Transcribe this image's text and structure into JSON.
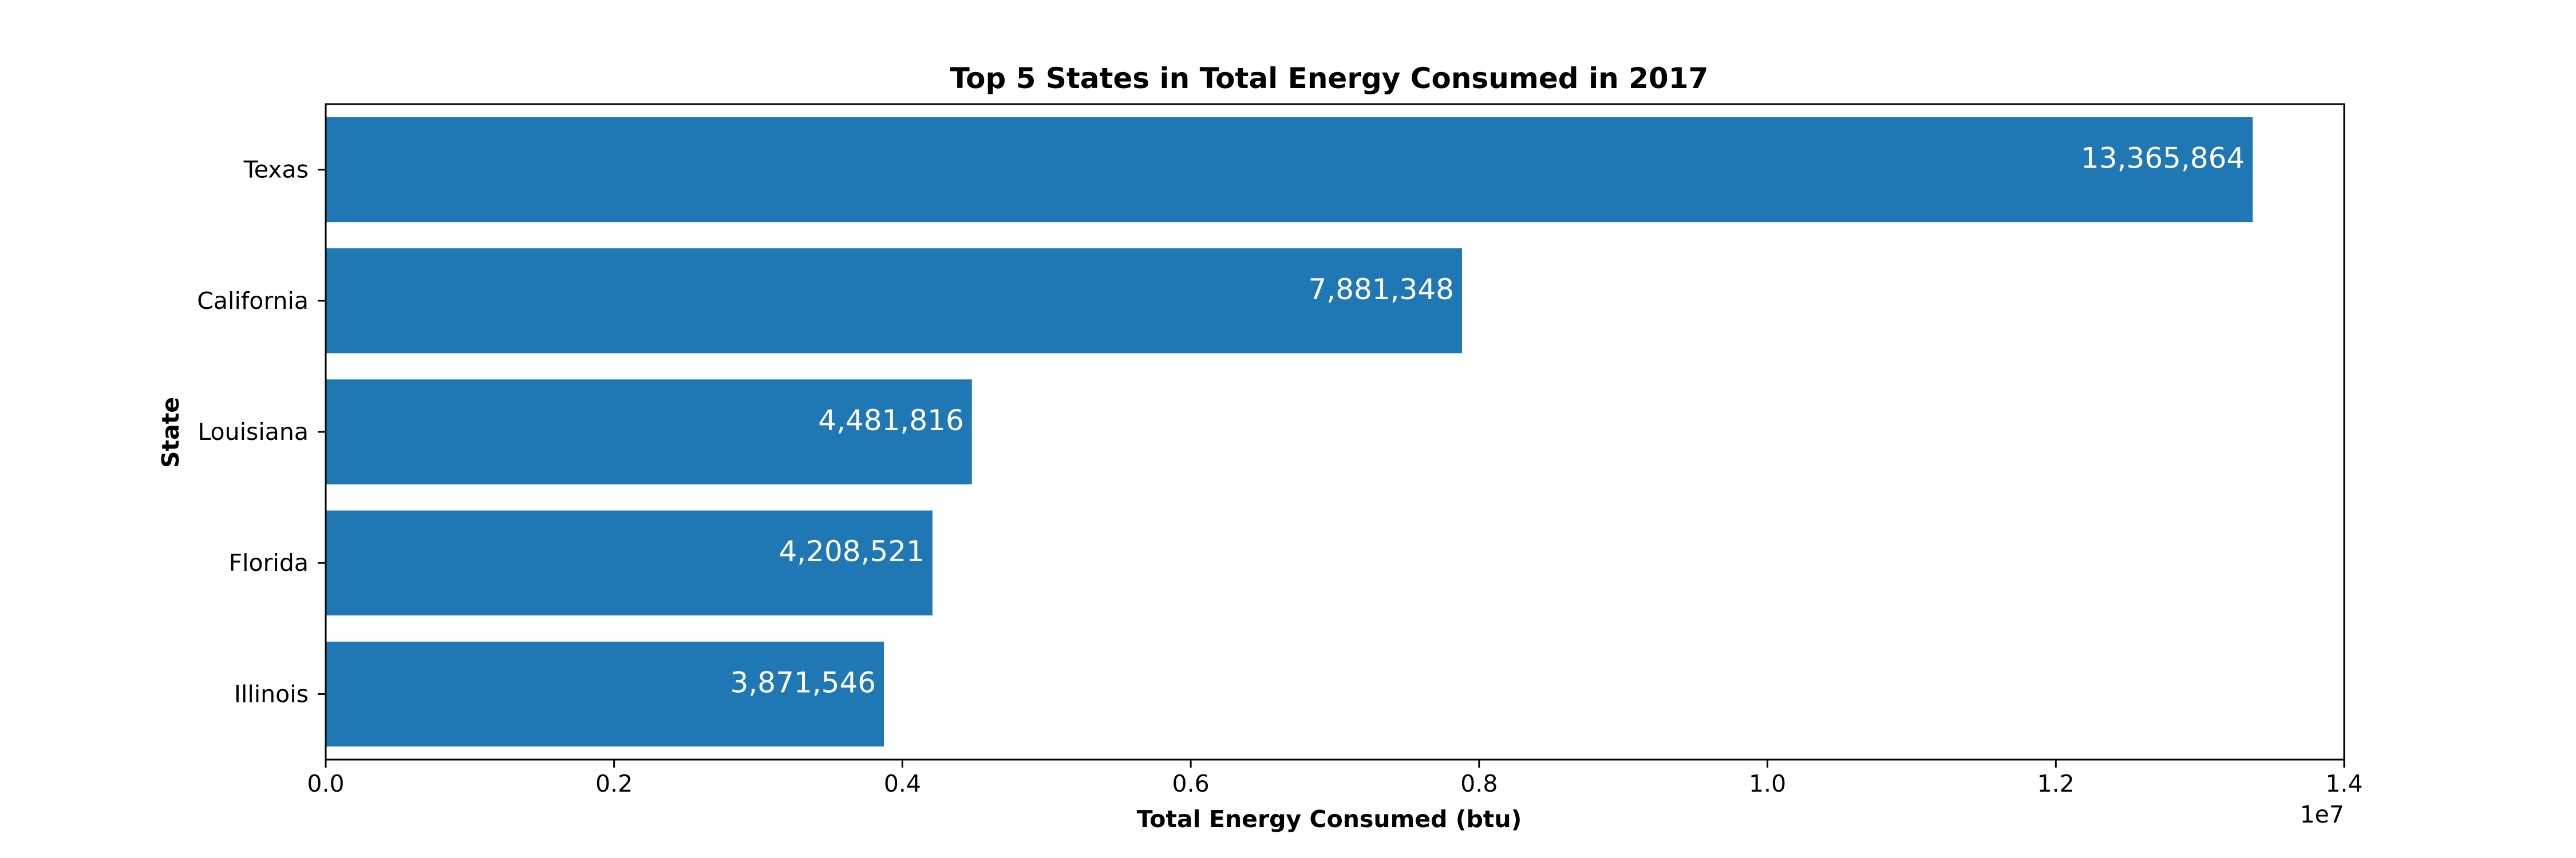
{
  "chart_data": {
    "type": "bar",
    "orientation": "horizontal",
    "title": "Top 5 States in Total Energy Consumed in 2017",
    "xlabel": "Total Energy Consumed (btu)",
    "ylabel": "State",
    "categories": [
      "Texas",
      "California",
      "Louisiana",
      "Florida",
      "Illinois"
    ],
    "values": [
      13365864,
      7881348,
      4481816,
      4208521,
      3871546
    ],
    "value_labels": [
      "13,365,864",
      "7,881,348",
      "4,481,816",
      "4,208,521",
      "3,871,546"
    ],
    "xlim": [
      0,
      14000000
    ],
    "xticks": [
      0,
      2000000,
      4000000,
      6000000,
      8000000,
      10000000,
      12000000,
      14000000
    ],
    "xtick_labels": [
      "0.0",
      "0.2",
      "0.4",
      "0.6",
      "0.8",
      "1.0",
      "1.2",
      "1.4"
    ],
    "x_offset_label": "1e7",
    "bar_color": "#1f77b4",
    "grid": false,
    "legend": false
  }
}
